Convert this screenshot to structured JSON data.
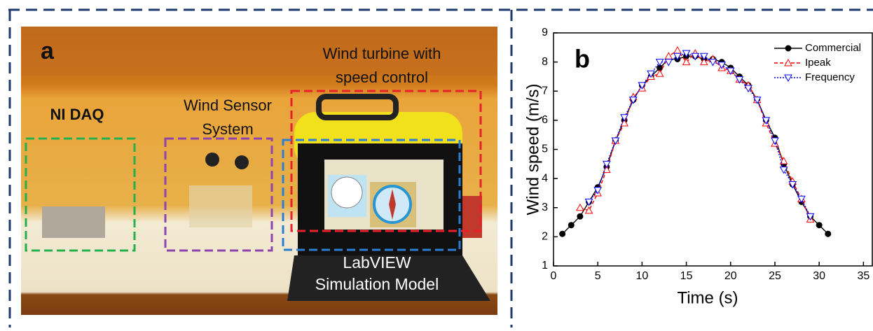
{
  "panel_a": {
    "label": "a",
    "boxes": [
      {
        "label": "NI DAQ",
        "color": "#22b14c"
      },
      {
        "label": "Wind Sensor System",
        "color": "#8e44ad"
      },
      {
        "label": "Wind turbine with speed control",
        "color": "#e8202a"
      },
      {
        "label": "LabVIEW Simulation Model",
        "color": "#2a7fd4"
      }
    ]
  },
  "chart_data": {
    "type": "line",
    "panel_label": "b",
    "x_label": "Time (s)",
    "y_label": "Wind speed (m/s)",
    "x": [
      1,
      2,
      3,
      4,
      5,
      6,
      7,
      8,
      9,
      10,
      11,
      12,
      13,
      14,
      15,
      16,
      17,
      18,
      19,
      20,
      21,
      22,
      23,
      24,
      25,
      26,
      27,
      28,
      29,
      30,
      31
    ],
    "series": [
      {
        "name": "Commercial",
        "color": "#000000",
        "dash": "solid",
        "marker": "circle",
        "values": [
          2.1,
          2.4,
          2.7,
          3.2,
          3.7,
          4.4,
          5.3,
          6.0,
          6.7,
          7.2,
          7.5,
          7.8,
          8.1,
          8.1,
          8.2,
          8.2,
          8.1,
          8.1,
          8.0,
          7.8,
          7.5,
          7.2,
          6.7,
          6.0,
          5.4,
          4.5,
          3.8,
          3.2,
          2.7,
          2.4,
          2.1
        ]
      },
      {
        "name": "Ipeak",
        "color": "#ff0000",
        "dash": "dashed",
        "marker": "triangle",
        "values": [
          null,
          null,
          3.0,
          2.9,
          3.5,
          4.3,
          5.3,
          5.9,
          6.8,
          7.1,
          7.5,
          7.6,
          8.2,
          8.4,
          8.0,
          8.3,
          8.0,
          8.1,
          7.8,
          7.7,
          7.4,
          7.2,
          6.7,
          5.9,
          5.2,
          4.6,
          3.9,
          3.3,
          2.6,
          null,
          null
        ]
      },
      {
        "name": "Frequency",
        "color": "#0000ff",
        "dash": "dotted",
        "marker": "triangle-down",
        "values": [
          null,
          null,
          null,
          3.2,
          3.6,
          4.5,
          5.3,
          6.1,
          6.7,
          7.2,
          7.6,
          8.0,
          8.0,
          8.2,
          8.3,
          8.2,
          8.2,
          8.0,
          7.9,
          7.7,
          7.4,
          7.1,
          6.7,
          6.0,
          5.3,
          4.3,
          3.8,
          3.3,
          2.7,
          null,
          null
        ]
      }
    ],
    "xlim": [
      0,
      36
    ],
    "xticks": [
      0,
      5,
      10,
      15,
      20,
      25,
      30,
      35
    ],
    "ylim": [
      1,
      9
    ],
    "yticks": [
      1,
      2,
      3,
      4,
      5,
      6,
      7,
      8,
      9
    ],
    "legend": "top-right"
  }
}
